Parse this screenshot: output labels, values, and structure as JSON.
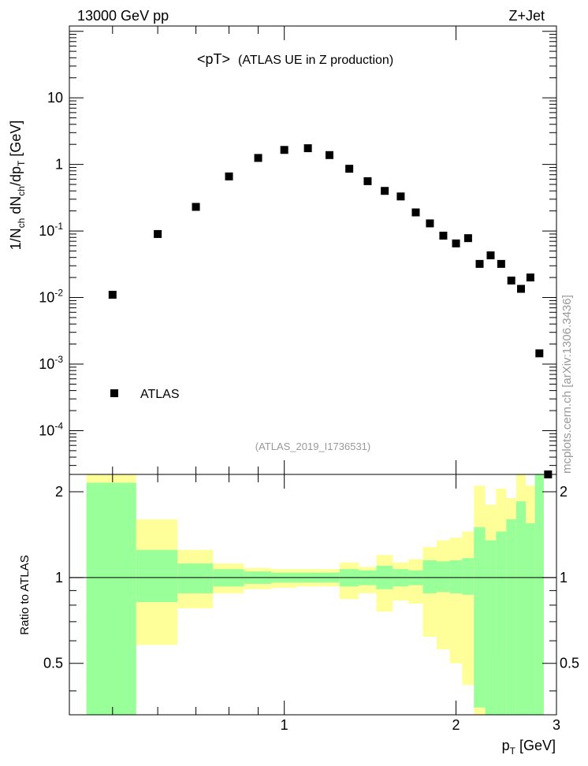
{
  "header": {
    "energy_label": "13000 GeV pp",
    "process_label": "Z+Jet"
  },
  "side_label": "mcplots.cern.ch [arXiv:1306.3436]",
  "chart_data": [
    {
      "type": "scatter",
      "panel": "main",
      "title": "<pT>",
      "subtitle": "(ATLAS UE in Z production)",
      "analysis_tag": "(ATLAS_2019_I1736531)",
      "ylabel": "1/N_ch dN_ch/dp_T [GeV]",
      "yscale": "log",
      "ylim": [
        2.2e-05,
        120
      ],
      "xlim": [
        0.42,
        3.0
      ],
      "ytick_labels": [
        "10^-4",
        "10^-3",
        "10^-2",
        "10^-1",
        "1",
        "10"
      ],
      "legend": {
        "placement": "bottom-left",
        "entries": [
          "ATLAS"
        ]
      },
      "series": [
        {
          "name": "ATLAS",
          "marker": "square",
          "color": "#000000",
          "x": [
            0.5,
            0.6,
            0.7,
            0.8,
            0.9,
            1.0,
            1.1,
            1.2,
            1.3,
            1.4,
            1.5,
            1.6,
            1.7,
            1.8,
            1.9,
            2.0,
            2.1,
            2.2,
            2.3,
            2.4,
            2.5,
            2.6,
            2.7,
            2.8,
            2.9
          ],
          "y": [
            0.011,
            0.09,
            0.23,
            0.66,
            1.25,
            1.65,
            1.75,
            1.38,
            0.86,
            0.56,
            0.4,
            0.33,
            0.19,
            0.13,
            0.085,
            0.065,
            0.078,
            0.032,
            0.043,
            0.032,
            0.018,
            0.0135,
            0.02,
            0.00145,
            2.2e-05
          ]
        }
      ]
    },
    {
      "type": "area",
      "panel": "ratio",
      "ylabel": "Ratio to ATLAS",
      "xlabel": "p_T [GeV]",
      "xlim": [
        0.42,
        3.0
      ],
      "ylim": [
        0.33,
        2.3
      ],
      "xtick_labels": [
        "1",
        "2",
        "3"
      ],
      "ytick_labels": [
        "0.5",
        "1",
        "2"
      ],
      "reference_line": 1.0,
      "colors": {
        "stat_band": "#99ff99",
        "total_band": "#ffff99"
      },
      "bins": [
        {
          "x": [
            0.45,
            0.55
          ],
          "inner": [
            0.33,
            2.15
          ],
          "outer": [
            0.33,
            2.3
          ]
        },
        {
          "x": [
            0.55,
            0.65
          ],
          "inner": [
            0.82,
            1.25
          ],
          "outer": [
            0.58,
            1.6
          ]
        },
        {
          "x": [
            0.65,
            0.75
          ],
          "inner": [
            0.88,
            1.12
          ],
          "outer": [
            0.78,
            1.25
          ]
        },
        {
          "x": [
            0.75,
            0.85
          ],
          "inner": [
            0.93,
            1.07
          ],
          "outer": [
            0.88,
            1.12
          ]
        },
        {
          "x": [
            0.85,
            0.95
          ],
          "inner": [
            0.95,
            1.05
          ],
          "outer": [
            0.91,
            1.08
          ]
        },
        {
          "x": [
            0.95,
            1.05
          ],
          "inner": [
            0.96,
            1.04
          ],
          "outer": [
            0.92,
            1.07
          ]
        },
        {
          "x": [
            1.05,
            1.15
          ],
          "inner": [
            0.96,
            1.04
          ],
          "outer": [
            0.93,
            1.07
          ]
        },
        {
          "x": [
            1.15,
            1.25
          ],
          "inner": [
            0.96,
            1.04
          ],
          "outer": [
            0.93,
            1.07
          ]
        },
        {
          "x": [
            1.25,
            1.35
          ],
          "inner": [
            0.93,
            1.07
          ],
          "outer": [
            0.84,
            1.13
          ]
        },
        {
          "x": [
            1.35,
            1.45
          ],
          "inner": [
            0.94,
            1.06
          ],
          "outer": [
            0.88,
            1.09
          ]
        },
        {
          "x": [
            1.45,
            1.55
          ],
          "inner": [
            0.91,
            1.1
          ],
          "outer": [
            0.76,
            1.2
          ]
        },
        {
          "x": [
            1.55,
            1.65
          ],
          "inner": [
            0.93,
            1.07
          ],
          "outer": [
            0.83,
            1.13
          ]
        },
        {
          "x": [
            1.65,
            1.75
          ],
          "inner": [
            0.94,
            1.06
          ],
          "outer": [
            0.81,
            1.16
          ]
        },
        {
          "x": [
            1.75,
            1.85
          ],
          "inner": [
            0.88,
            1.15
          ],
          "outer": [
            0.62,
            1.28
          ]
        },
        {
          "x": [
            1.85,
            1.95
          ],
          "inner": [
            0.89,
            1.14
          ],
          "outer": [
            0.56,
            1.35
          ]
        },
        {
          "x": [
            1.95,
            2.05
          ],
          "inner": [
            0.88,
            1.15
          ],
          "outer": [
            0.5,
            1.38
          ]
        },
        {
          "x": [
            2.05,
            2.15
          ],
          "inner": [
            0.87,
            1.17
          ],
          "outer": [
            0.42,
            1.45
          ]
        },
        {
          "x": [
            2.15,
            2.25
          ],
          "inner": [
            0.35,
            1.5
          ],
          "outer": [
            0.33,
            2.1
          ]
        },
        {
          "x": [
            2.25,
            2.35
          ],
          "inner": [
            0.33,
            1.35
          ],
          "outer": [
            0.62,
            1.8
          ]
        },
        {
          "x": [
            2.35,
            2.45
          ],
          "inner": [
            0.33,
            1.45
          ],
          "outer": [
            0.55,
            2.05
          ]
        },
        {
          "x": [
            2.45,
            2.55
          ],
          "inner": [
            0.33,
            1.6
          ],
          "outer": [
            0.33,
            1.9
          ]
        },
        {
          "x": [
            2.55,
            2.65
          ],
          "inner": [
            0.33,
            1.85
          ],
          "outer": [
            0.33,
            2.3
          ]
        },
        {
          "x": [
            2.65,
            2.75
          ],
          "inner": [
            0.33,
            1.55
          ],
          "outer": [
            0.33,
            2.1
          ]
        },
        {
          "x": [
            2.75,
            2.85
          ],
          "inner": [
            0.33,
            2.3
          ],
          "outer": [
            0.33,
            2.3
          ]
        }
      ]
    }
  ]
}
